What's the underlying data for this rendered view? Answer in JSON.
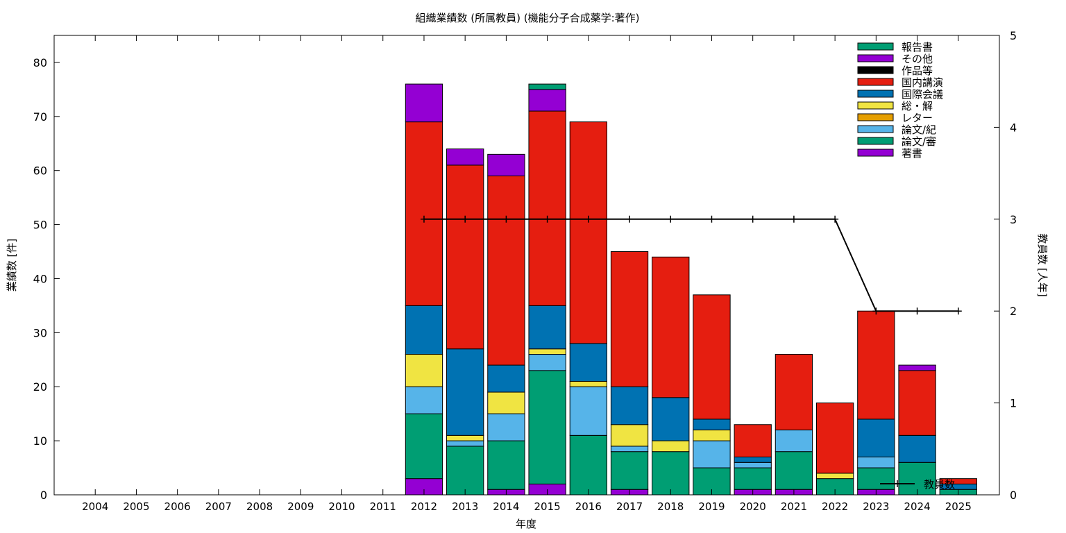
{
  "chart_data": {
    "type": "bar",
    "title": "組織業績数 (所属教員) (機能分子合成薬学:著作)",
    "xlabel": "年度",
    "ylabel": "業績数 [件]",
    "y2label": "教員数 [人年]",
    "ylim": [
      0,
      85
    ],
    "y2lim": [
      0,
      5
    ],
    "yticks": [
      0,
      10,
      20,
      30,
      40,
      50,
      60,
      70,
      80
    ],
    "y2ticks": [
      0,
      1,
      2,
      3,
      4,
      5
    ],
    "grid": false,
    "stacked": true,
    "legend_position": "top-right",
    "categories": [
      "2004",
      "2005",
      "2006",
      "2007",
      "2008",
      "2009",
      "2010",
      "2011",
      "2012",
      "2013",
      "2014",
      "2015",
      "2016",
      "2017",
      "2018",
      "2019",
      "2020",
      "2021",
      "2022",
      "2023",
      "2024",
      "2025"
    ],
    "series": [
      {
        "name": "著書",
        "color": "#9400d3",
        "values": [
          0,
          0,
          0,
          0,
          0,
          0,
          0,
          0,
          3,
          0,
          1,
          2,
          0,
          1,
          0,
          0,
          1,
          1,
          0,
          1,
          0,
          0
        ]
      },
      {
        "name": "論文/審",
        "color": "#009e73",
        "values": [
          0,
          0,
          0,
          0,
          0,
          0,
          0,
          0,
          12,
          9,
          9,
          21,
          11,
          7,
          8,
          5,
          4,
          7,
          3,
          4,
          6,
          1
        ]
      },
      {
        "name": "論文/紀",
        "color": "#56b4e9",
        "values": [
          0,
          0,
          0,
          0,
          0,
          0,
          0,
          0,
          5,
          1,
          5,
          3,
          9,
          1,
          0,
          5,
          1,
          4,
          0,
          2,
          0,
          0
        ]
      },
      {
        "name": "レター",
        "color": "#e69f00",
        "values": [
          0,
          0,
          0,
          0,
          0,
          0,
          0,
          0,
          0,
          0,
          0,
          0,
          0,
          0,
          0,
          0,
          0,
          0,
          0,
          0,
          0,
          0
        ]
      },
      {
        "name": "総・解",
        "color": "#f0e442",
        "values": [
          0,
          0,
          0,
          0,
          0,
          0,
          0,
          0,
          6,
          1,
          4,
          1,
          1,
          4,
          2,
          2,
          0,
          0,
          1,
          0,
          0,
          0
        ]
      },
      {
        "name": "国際会議",
        "color": "#0072b2",
        "values": [
          0,
          0,
          0,
          0,
          0,
          0,
          0,
          0,
          9,
          16,
          5,
          8,
          7,
          7,
          8,
          2,
          1,
          0,
          0,
          7,
          5,
          1
        ]
      },
      {
        "name": "国内講演",
        "color": "#e51e10",
        "values": [
          0,
          0,
          0,
          0,
          0,
          0,
          0,
          0,
          34,
          34,
          35,
          36,
          41,
          25,
          26,
          23,
          6,
          14,
          13,
          20,
          12,
          1
        ]
      },
      {
        "name": "作品等",
        "color": "#000000",
        "values": [
          0,
          0,
          0,
          0,
          0,
          0,
          0,
          0,
          0,
          0,
          0,
          0,
          0,
          0,
          0,
          0,
          0,
          0,
          0,
          0,
          0,
          0
        ]
      },
      {
        "name": "その他",
        "color": "#9400d3",
        "values": [
          0,
          0,
          0,
          0,
          0,
          0,
          0,
          0,
          7,
          3,
          4,
          4,
          0,
          0,
          0,
          0,
          0,
          0,
          0,
          0,
          1,
          0
        ]
      },
      {
        "name": "報告書",
        "color": "#009e73",
        "values": [
          0,
          0,
          0,
          0,
          0,
          0,
          0,
          0,
          0,
          0,
          0,
          1,
          0,
          0,
          0,
          0,
          0,
          0,
          0,
          0,
          0,
          0
        ]
      }
    ],
    "legend_order": [
      "報告書",
      "その他",
      "作品等",
      "国内講演",
      "国際会議",
      "総・解",
      "レター",
      "論文/紀",
      "論文/審",
      "著書"
    ],
    "line": {
      "name": "教員数",
      "axis": "y2",
      "color": "#000000",
      "x": [
        "2012",
        "2013",
        "2014",
        "2015",
        "2016",
        "2017",
        "2018",
        "2019",
        "2020",
        "2021",
        "2022",
        "2023",
        "2024",
        "2025"
      ],
      "values": [
        3,
        3,
        3,
        3,
        3,
        3,
        3,
        3,
        3,
        3,
        3,
        2,
        2,
        2
      ]
    }
  }
}
